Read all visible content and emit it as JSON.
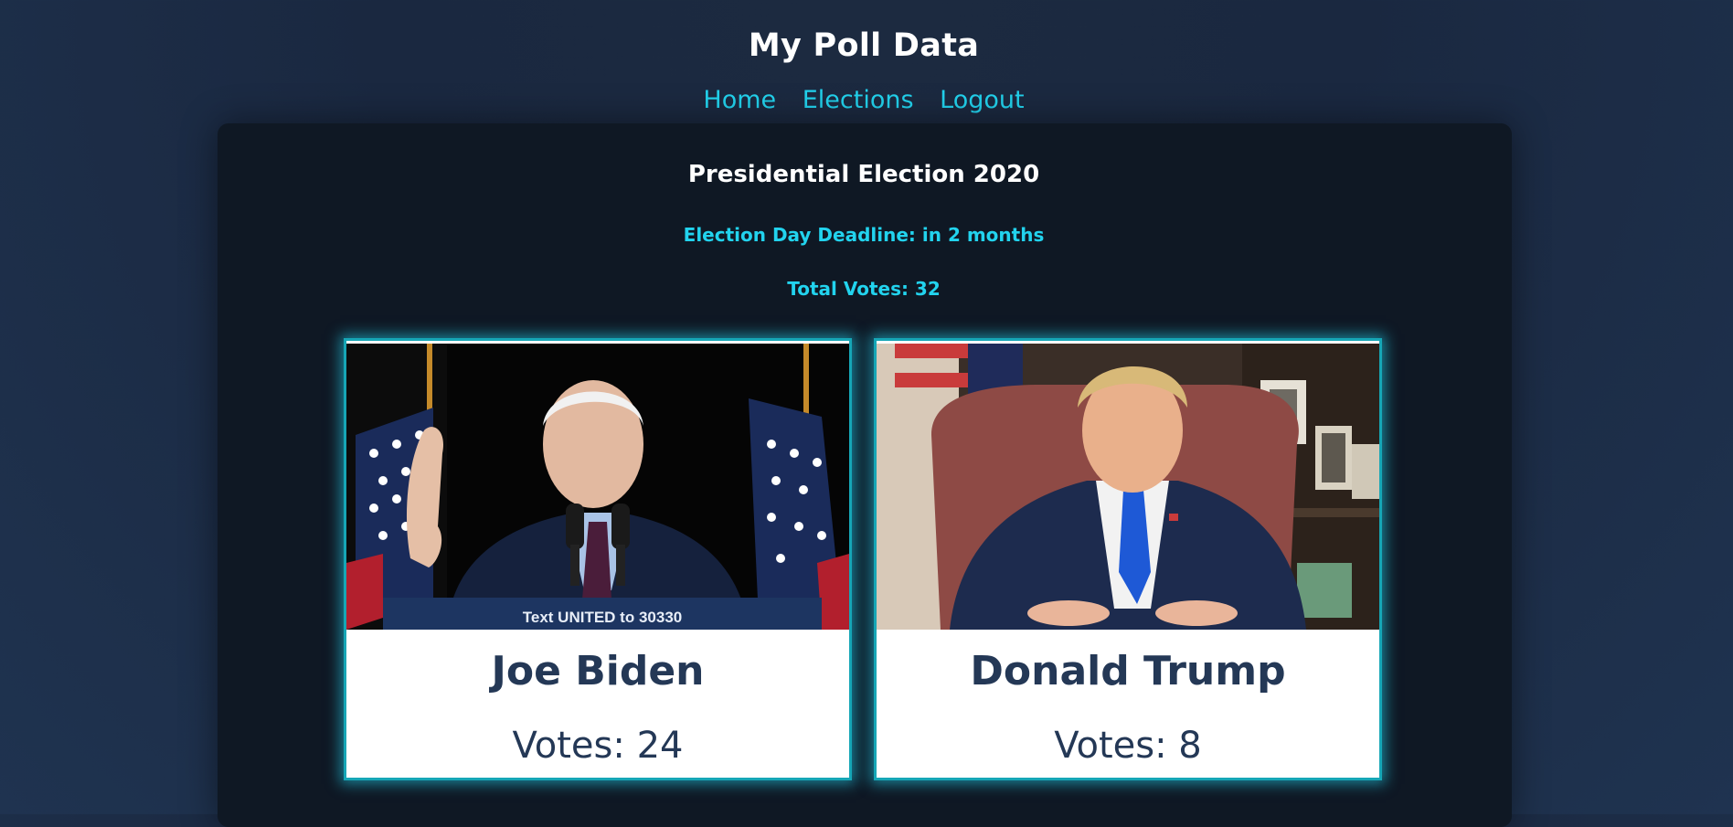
{
  "site": {
    "title": "My Poll Data"
  },
  "nav": {
    "items": [
      "Home",
      "Elections",
      "Logout"
    ]
  },
  "election": {
    "title": "Presidential Election 2020",
    "deadline": "Election Day Deadline: in 2 months",
    "total_votes": "Total Votes: 32"
  },
  "candidates": [
    {
      "name": "Joe Biden",
      "votes": "Votes: 24",
      "photo_caption": "Text UNITED to 30330"
    },
    {
      "name": "Donald Trump",
      "votes": "Votes: 8"
    }
  ],
  "colors": {
    "accent": "#22d3ee",
    "background": "#1b2a42",
    "panel": "#0f1824",
    "card_text": "#243856",
    "card_border": "#16a6b6"
  }
}
